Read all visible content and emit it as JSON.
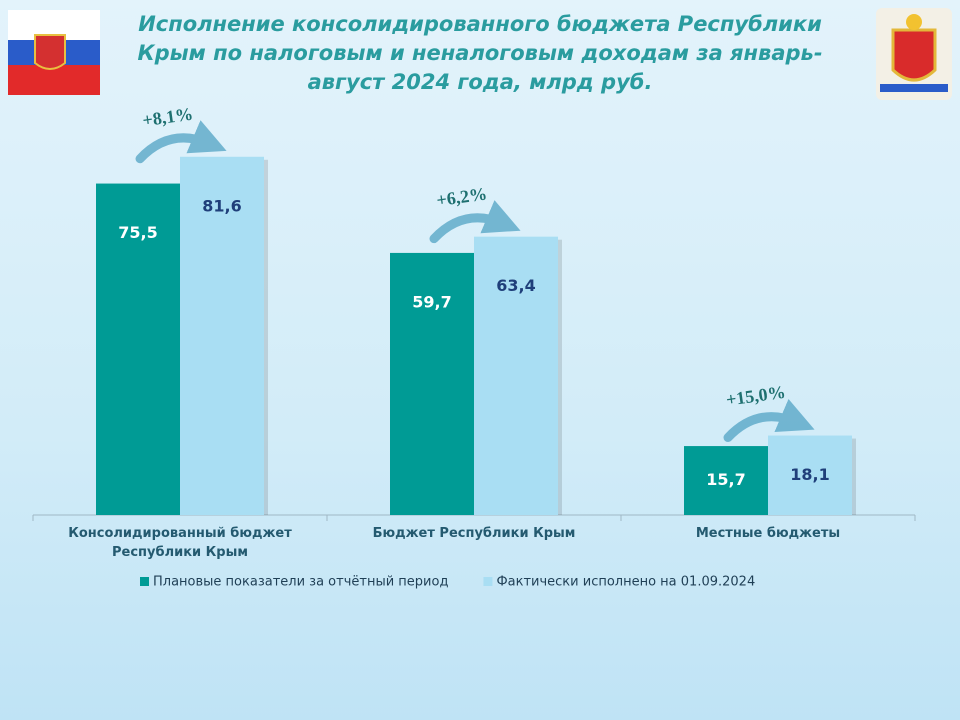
{
  "chart_data": {
    "type": "bar",
    "title": "Исполнение консолидированного бюджета Республики Крым по налоговым и неналоговым доходам за январь-август 2024 года, млрд руб.",
    "categories": [
      "Консолидированный бюджет Республики Крым",
      "Бюджет Республики Крым",
      "Местные бюджеты"
    ],
    "series": [
      {
        "name": "Плановые показатели за отчётный период",
        "color": "#009b95",
        "values": [
          75.5,
          59.7,
          15.7
        ],
        "value_labels": [
          "75,5",
          "59,7",
          "15,7"
        ]
      },
      {
        "name": "Фактически исполнено на 01.09.2024",
        "color": "#a9def3",
        "values": [
          81.6,
          63.4,
          18.1
        ],
        "value_labels": [
          "81,6",
          "63,4",
          "18,1"
        ]
      }
    ],
    "annotations": [
      "+8,1%",
      "+6,2%",
      "+15,0%"
    ],
    "legend": "bottom"
  }
}
